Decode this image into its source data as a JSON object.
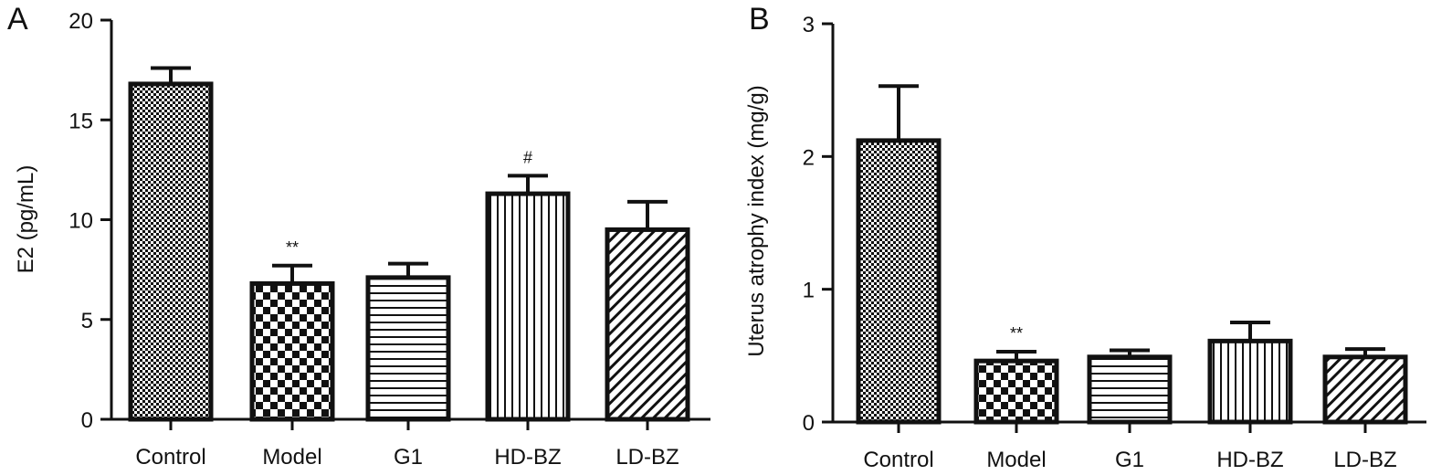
{
  "chart_data": [
    {
      "type": "bar",
      "panel": "A",
      "categories": [
        "Control",
        "Model",
        "G1",
        "HD-BZ",
        "LD-BZ"
      ],
      "values": [
        16.8,
        6.8,
        7.1,
        11.3,
        9.5
      ],
      "errors": [
        0.8,
        0.9,
        0.7,
        0.9,
        1.4
      ],
      "annotations": [
        "",
        "**",
        "",
        "#",
        ""
      ],
      "patterns": [
        "fine-check",
        "check",
        "hlines",
        "vlines",
        "diag"
      ],
      "ylabel": "E2 (pg/mL)",
      "xlabel": "",
      "ylim": [
        0,
        20
      ],
      "yticks": [
        "0",
        "5",
        "10",
        "15",
        "20"
      ],
      "grid": false
    },
    {
      "type": "bar",
      "panel": "B",
      "categories": [
        "Control",
        "Model",
        "G1",
        "HD-BZ",
        "LD-BZ"
      ],
      "values": [
        2.12,
        0.46,
        0.49,
        0.61,
        0.49
      ],
      "errors": [
        0.41,
        0.07,
        0.05,
        0.14,
        0.06
      ],
      "annotations": [
        "",
        "**",
        "",
        "",
        ""
      ],
      "patterns": [
        "fine-check",
        "check",
        "hlines",
        "vlines",
        "diag"
      ],
      "ylabel": "Uterus atrophy index (mg/g)",
      "xlabel": "",
      "ylim": [
        0,
        3
      ],
      "yticks": [
        "0",
        "1",
        "2",
        "3"
      ],
      "grid": false
    }
  ]
}
